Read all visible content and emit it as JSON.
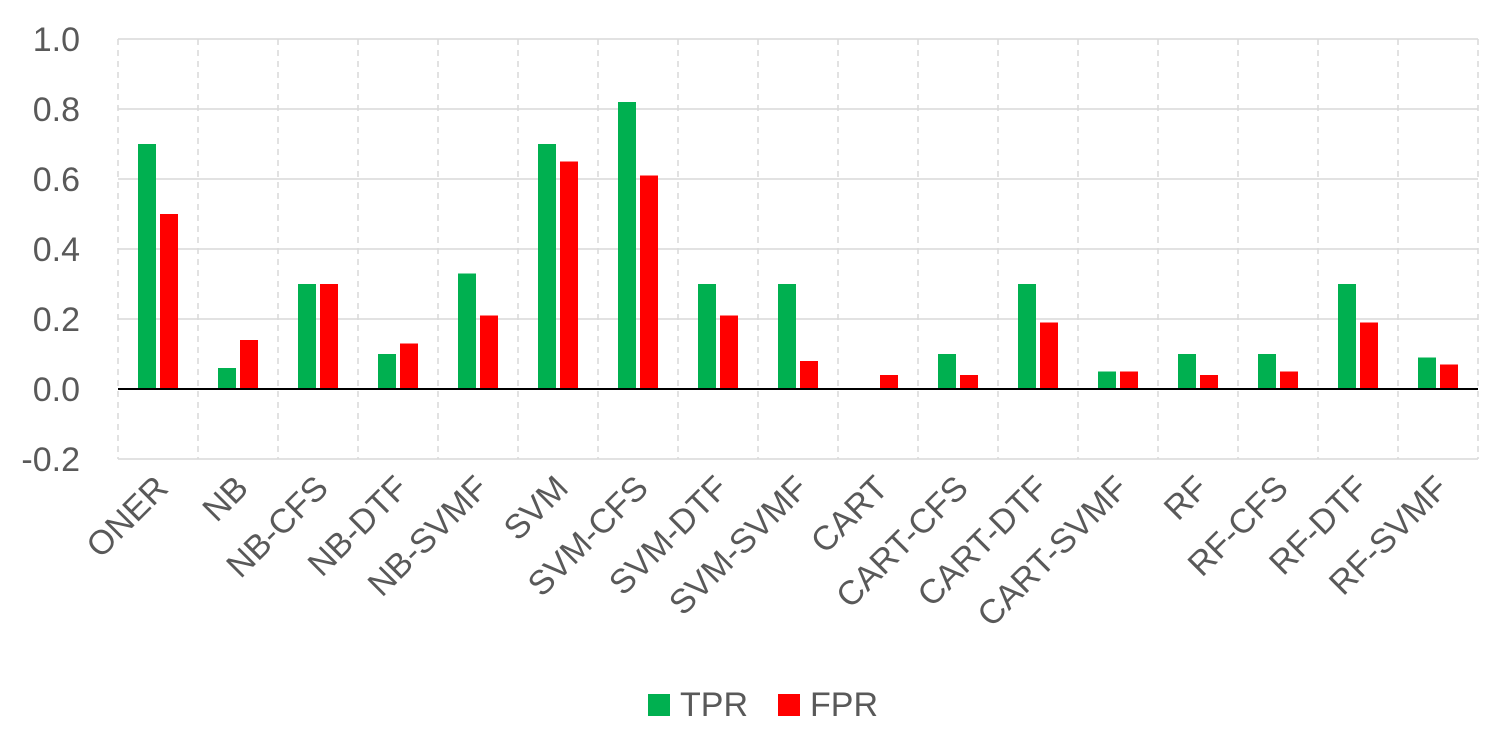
{
  "chart_data": {
    "type": "bar",
    "categories": [
      "ONER",
      "NB",
      "NB-CFS",
      "NB-DTF",
      "NB-SVMF",
      "SVM",
      "SVM-CFS",
      "SVM-DTF",
      "SVM-SVMF",
      "CART",
      "CART-CFS",
      "CART-DTF",
      "CART-SVMF",
      "RF",
      "RF-CFS",
      "RF-DTF",
      "RF-SVMF"
    ],
    "series": [
      {
        "name": "TPR",
        "color": "#00b050",
        "values": [
          0.7,
          0.06,
          0.3,
          0.1,
          0.33,
          0.7,
          0.82,
          0.3,
          0.3,
          0.0,
          0.1,
          0.3,
          0.05,
          0.1,
          0.1,
          0.3,
          0.09
        ]
      },
      {
        "name": "FPR",
        "color": "#ff0000",
        "values": [
          0.5,
          0.14,
          0.3,
          0.13,
          0.21,
          0.65,
          0.61,
          0.21,
          0.08,
          0.04,
          0.04,
          0.19,
          0.05,
          0.04,
          0.05,
          0.19,
          0.07
        ]
      }
    ],
    "yticks": [
      "1.0",
      "0.8",
      "0.6",
      "0.4",
      "0.2",
      "0.0",
      "-0.2"
    ],
    "ytick_values": [
      1.0,
      0.8,
      0.6,
      0.4,
      0.2,
      0.0,
      -0.2
    ],
    "ylim": [
      -0.2,
      1.0
    ],
    "grid": true,
    "legend_position": "bottom"
  }
}
